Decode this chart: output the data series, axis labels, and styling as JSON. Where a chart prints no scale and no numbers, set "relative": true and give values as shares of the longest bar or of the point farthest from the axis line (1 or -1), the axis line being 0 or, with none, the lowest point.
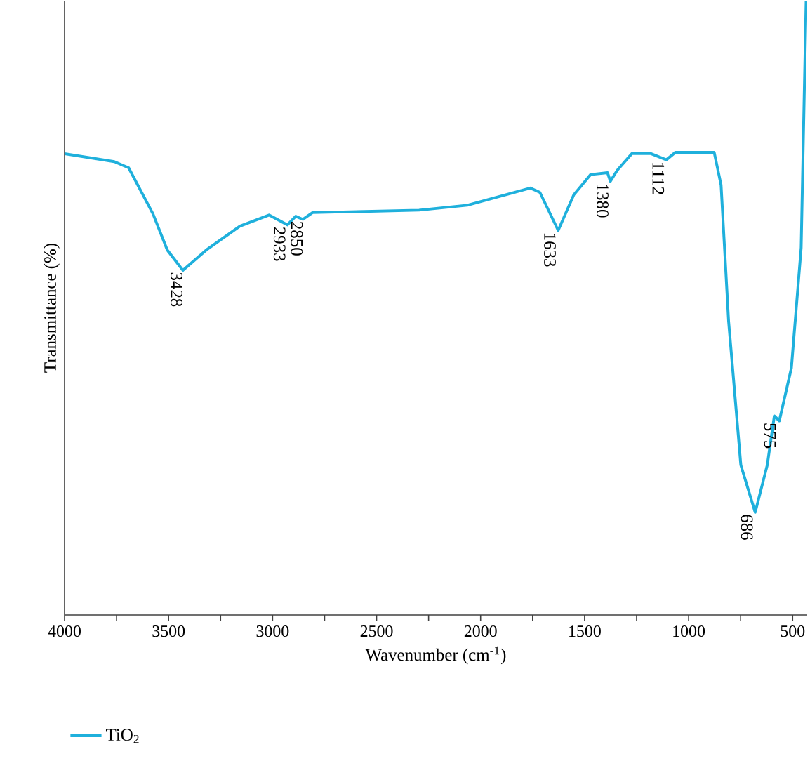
{
  "chart_data": {
    "type": "line",
    "relative": true,
    "xlabel": "Wavenumber (cm$^{-1}$)",
    "ylabel": "Transmittance (%)",
    "xlim": [
      4000,
      430
    ],
    "xticks": [
      4000,
      {
        "value": 3750,
        "label": null
      },
      3500,
      {
        "value": 3250,
        "label": null
      },
      3000,
      {
        "value": 2750,
        "label": null
      },
      2500,
      {
        "value": 2250,
        "label": null
      },
      2000,
      {
        "value": 1750,
        "label": null
      },
      1500,
      {
        "value": 1250,
        "label": null
      },
      1000,
      {
        "value": 750,
        "label": null
      },
      500
    ],
    "tick_labels": "x",
    "legend": "bottom left",
    "grid": false,
    "marker": "none",
    "line_style": "solid",
    "series": [
      {
        "name": "TiO$_{2}$",
        "color": "#1fb0dc",
        "x": [
          4000,
          3761,
          3692,
          3575,
          3506,
          3431,
          3319,
          3157,
          3017,
          2929,
          2889,
          2854,
          2808,
          2296,
          2064,
          1761,
          1715,
          1627,
          1552,
          1471,
          1390,
          1376,
          1343,
          1273,
          1181,
          1107,
          1064,
          877,
          844,
          808,
          749,
          680,
          622,
          588,
          564,
          506,
          459,
          435
        ],
        "values": [
          0.751,
          0.738,
          0.728,
          0.653,
          0.594,
          0.561,
          0.594,
          0.633,
          0.651,
          0.635,
          0.649,
          0.644,
          0.655,
          0.659,
          0.667,
          0.695,
          0.688,
          0.626,
          0.684,
          0.717,
          0.72,
          0.706,
          0.724,
          0.751,
          0.751,
          0.741,
          0.753,
          0.753,
          0.7,
          0.479,
          0.244,
          0.167,
          0.244,
          0.324,
          0.316,
          0.402,
          0.598,
          1.0
        ]
      }
    ],
    "annotations": [
      {
        "text": "3428",
        "x": 3428,
        "y": 0.561
      },
      {
        "text": "2933",
        "x": 2933,
        "y": 0.635
      },
      {
        "text": "2850",
        "x": 2850,
        "y": 0.644
      },
      {
        "text": "1633",
        "x": 1633,
        "y": 0.626
      },
      {
        "text": "1380",
        "x": 1380,
        "y": 0.706
      },
      {
        "text": "1112",
        "x": 1112,
        "y": 0.741
      },
      {
        "text": "686",
        "x": 686,
        "y": 0.167
      },
      {
        "text": "575",
        "x": 575,
        "y": 0.316
      }
    ]
  }
}
